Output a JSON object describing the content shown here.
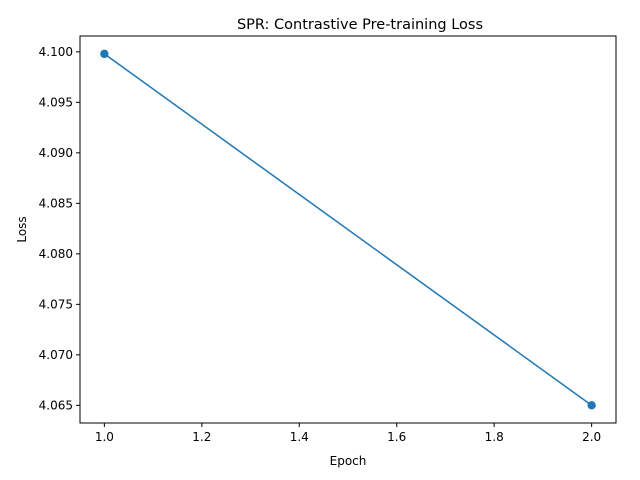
{
  "chart_data": {
    "type": "line",
    "title": "SPR: Contrastive Pre-training Loss",
    "xlabel": "Epoch",
    "ylabel": "Loss",
    "xlim": [
      0.95,
      2.05
    ],
    "ylim": [
      4.06325,
      4.10157
    ],
    "xticks": [
      1.0,
      1.2,
      1.4,
      1.6,
      1.8,
      2.0
    ],
    "xtick_labels": [
      "1.0",
      "1.2",
      "1.4",
      "1.6",
      "1.8",
      "2.0"
    ],
    "yticks": [
      4.065,
      4.07,
      4.075,
      4.08,
      4.085,
      4.09,
      4.095,
      4.1
    ],
    "ytick_labels": [
      "4.065",
      "4.070",
      "4.075",
      "4.080",
      "4.085",
      "4.090",
      "4.095",
      "4.100"
    ],
    "grid": false,
    "series": [
      {
        "x": [
          1,
          2
        ],
        "y": [
          4.0998,
          4.065
        ],
        "color": "#1f77b4",
        "marker": "circle"
      }
    ]
  }
}
